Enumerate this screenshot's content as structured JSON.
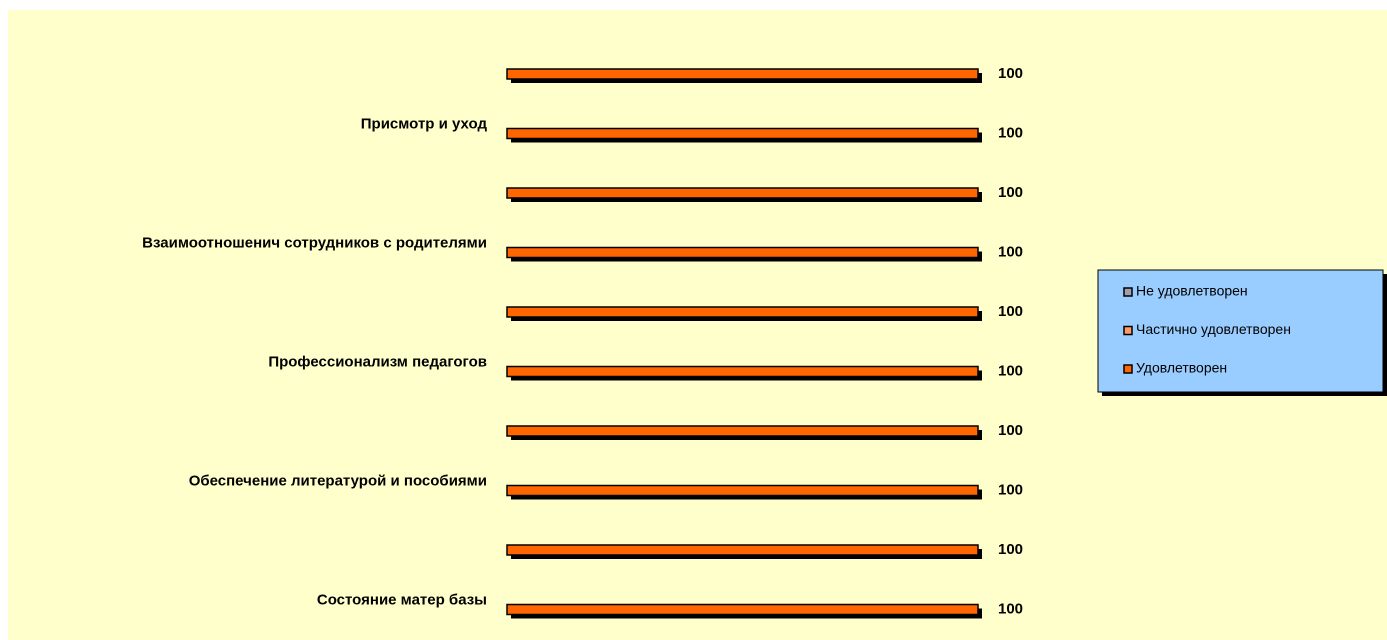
{
  "chart_data": {
    "type": "bar",
    "categories": [
      null,
      "Присмотр и уход",
      null,
      "Взаимоотношенич сотрудников с родителями",
      null,
      "Профессионализм педагогов",
      null,
      "Обеспечение литературой и пособиями",
      null,
      "Состояние матер базы"
    ],
    "series": [
      {
        "name": "Не удовлетворен",
        "color": "#a0a0a8",
        "values": [
          0,
          0,
          0,
          0,
          0,
          0,
          0,
          0,
          0,
          0
        ]
      },
      {
        "name": "Частично удовлетворен",
        "color": "#ff9966",
        "values": [
          0,
          0,
          0,
          0,
          0,
          0,
          0,
          0,
          0,
          0
        ]
      },
      {
        "name": "Удовлетворен",
        "color": "#ff6600",
        "values": [
          100,
          100,
          100,
          100,
          100,
          100,
          100,
          100,
          100,
          100
        ]
      }
    ],
    "xlim": [
      0,
      100
    ],
    "legend": "right"
  }
}
